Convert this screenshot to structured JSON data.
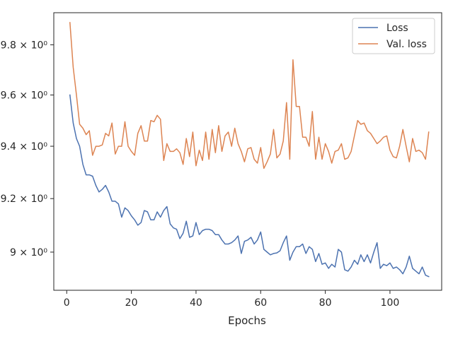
{
  "chart_data": {
    "type": "line",
    "title": "",
    "xlabel": "Epochs",
    "ylabel": "",
    "xlim": [
      -4,
      116
    ],
    "ylim": [
      8.86,
      9.93
    ],
    "yscale": "log",
    "grid": false,
    "legend": "top-right",
    "x_ticks": [
      0,
      20,
      40,
      60,
      80,
      100
    ],
    "y_ticks": [
      {
        "value": 9.0,
        "label": "9 × 10⁰"
      },
      {
        "value": 9.2,
        "label": "9.2 × 10⁰"
      },
      {
        "value": 9.4,
        "label": "9.4 × 10⁰"
      },
      {
        "value": 9.6,
        "label": "9.6 × 10⁰"
      },
      {
        "value": 9.8,
        "label": "9.8 × 10⁰"
      }
    ],
    "x": [
      1,
      2,
      3,
      4,
      5,
      6,
      7,
      8,
      9,
      10,
      11,
      12,
      13,
      14,
      15,
      16,
      17,
      18,
      19,
      20,
      21,
      22,
      23,
      24,
      25,
      26,
      27,
      28,
      29,
      30,
      31,
      32,
      33,
      34,
      35,
      36,
      37,
      38,
      39,
      40,
      41,
      42,
      43,
      44,
      45,
      46,
      47,
      48,
      49,
      50,
      51,
      52,
      53,
      54,
      55,
      56,
      57,
      58,
      59,
      60,
      61,
      62,
      63,
      64,
      65,
      66,
      67,
      68,
      69,
      70,
      71,
      72,
      73,
      74,
      75,
      76,
      77,
      78,
      79,
      80,
      81,
      82,
      83,
      84,
      85,
      86,
      87,
      88,
      89,
      90,
      91,
      92,
      93,
      94,
      95,
      96,
      97,
      98,
      99,
      100,
      101,
      102,
      103,
      104,
      105,
      106,
      107,
      108,
      109,
      110,
      111,
      112
    ],
    "series": [
      {
        "name": "Loss",
        "color": "#4c72b0",
        "values": [
          9.6,
          9.49,
          9.43,
          9.4,
          9.33,
          9.29,
          9.29,
          9.285,
          9.25,
          9.225,
          9.235,
          9.25,
          9.225,
          9.19,
          9.19,
          9.18,
          9.13,
          9.165,
          9.155,
          9.135,
          9.12,
          9.1,
          9.11,
          9.155,
          9.15,
          9.12,
          9.12,
          9.15,
          9.13,
          9.155,
          9.17,
          9.105,
          9.09,
          9.085,
          9.05,
          9.07,
          9.115,
          9.055,
          9.06,
          9.11,
          9.065,
          9.08,
          9.085,
          9.085,
          9.08,
          9.065,
          9.065,
          9.045,
          9.03,
          9.03,
          9.035,
          9.045,
          9.06,
          8.995,
          9.04,
          9.045,
          9.055,
          9.03,
          9.045,
          9.075,
          9.01,
          9.0,
          8.99,
          8.995,
          8.997,
          9.005,
          9.035,
          9.06,
          8.97,
          9.0,
          9.02,
          9.02,
          9.03,
          8.995,
          9.02,
          9.01,
          8.965,
          8.995,
          8.955,
          8.96,
          8.94,
          8.955,
          8.945,
          9.01,
          9.0,
          8.935,
          8.93,
          8.945,
          8.97,
          8.955,
          8.99,
          8.965,
          8.99,
          8.96,
          9.0,
          9.035,
          8.94,
          8.955,
          8.95,
          8.96,
          8.94,
          8.945,
          8.935,
          8.92,
          8.945,
          8.985,
          8.94,
          8.93,
          8.92,
          8.945,
          8.915,
          8.91
        ]
      },
      {
        "name": "Val. loss",
        "color": "#dd8452",
        "values": [
          9.89,
          9.71,
          9.6,
          9.485,
          9.47,
          9.445,
          9.46,
          9.365,
          9.4,
          9.4,
          9.405,
          9.45,
          9.44,
          9.49,
          9.37,
          9.4,
          9.4,
          9.495,
          9.4,
          9.38,
          9.365,
          9.45,
          9.48,
          9.42,
          9.42,
          9.5,
          9.495,
          9.52,
          9.505,
          9.345,
          9.41,
          9.38,
          9.38,
          9.39,
          9.375,
          9.33,
          9.43,
          9.36,
          9.455,
          9.325,
          9.385,
          9.345,
          9.455,
          9.35,
          9.465,
          9.375,
          9.48,
          9.38,
          9.44,
          9.455,
          9.4,
          9.47,
          9.41,
          9.38,
          9.34,
          9.39,
          9.395,
          9.35,
          9.335,
          9.395,
          9.315,
          9.34,
          9.37,
          9.465,
          9.355,
          9.37,
          9.42,
          9.57,
          9.35,
          9.74,
          9.555,
          9.555,
          9.435,
          9.435,
          9.4,
          9.535,
          9.35,
          9.435,
          9.35,
          9.41,
          9.38,
          9.335,
          9.38,
          9.385,
          9.41,
          9.35,
          9.355,
          9.38,
          9.44,
          9.5,
          9.485,
          9.49,
          9.46,
          9.45,
          9.43,
          9.41,
          9.42,
          9.435,
          9.44,
          9.385,
          9.36,
          9.355,
          9.4,
          9.465,
          9.4,
          9.34,
          9.43,
          9.38,
          9.385,
          9.375,
          9.35,
          9.455
        ]
      }
    ]
  }
}
